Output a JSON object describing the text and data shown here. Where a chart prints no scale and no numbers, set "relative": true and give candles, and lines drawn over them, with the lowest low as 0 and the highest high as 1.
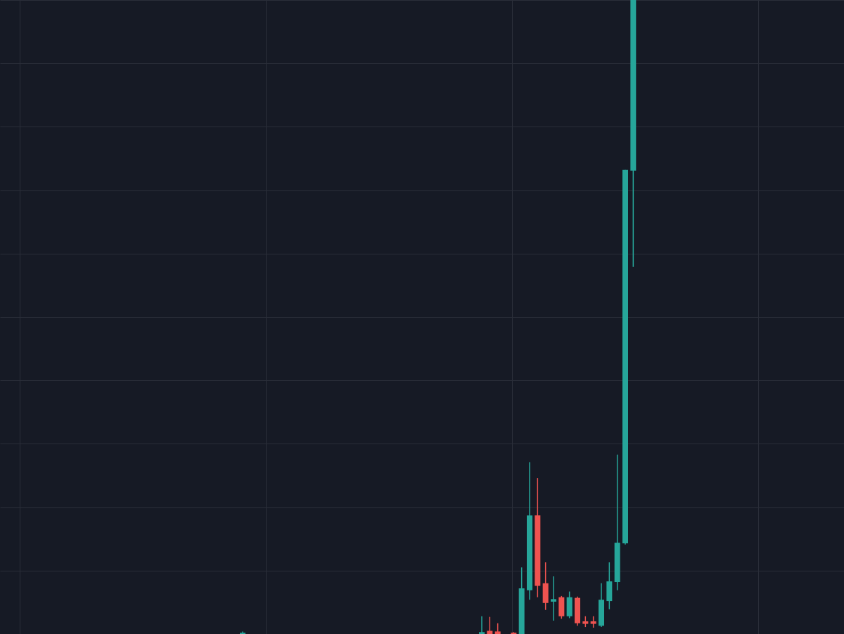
{
  "chart_data": {
    "type": "candlestick",
    "relative": true,
    "grid": true,
    "categories": [
      null,
      null,
      null,
      null,
      null,
      null,
      null,
      null,
      null,
      null,
      null,
      null,
      null,
      null,
      null,
      null,
      null,
      null,
      null,
      null,
      null,
      null,
      null,
      null,
      null,
      null,
      null,
      null,
      null,
      null,
      null,
      null,
      null,
      null,
      null,
      null,
      null,
      null,
      null,
      null,
      null,
      null,
      null,
      null,
      null,
      null,
      null,
      null,
      null,
      null
    ],
    "ohlc": [
      [
        0,
        0.004,
        0,
        0.002
      ],
      null,
      null,
      null,
      null,
      null,
      null,
      null,
      null,
      null,
      null,
      null,
      null,
      null,
      null,
      null,
      null,
      null,
      null,
      null,
      null,
      null,
      null,
      null,
      null,
      null,
      null,
      null,
      null,
      null,
      [
        0,
        0.028,
        0,
        0.003
      ],
      [
        0.005,
        0.027,
        0,
        0
      ],
      [
        0.004,
        0.017,
        0,
        0
      ],
      null,
      [
        0.002,
        0.003,
        0,
        0
      ],
      [
        0,
        0.105,
        0,
        0.072
      ],
      [
        0.069,
        0.271,
        0.054,
        0.187
      ],
      [
        0.187,
        0.246,
        0.058,
        0.076
      ],
      [
        0.08,
        0.113,
        0.038,
        0.049
      ],
      [
        0.051,
        0.091,
        0.021,
        0.055
      ],
      [
        0.058,
        0.06,
        0.024,
        0.028
      ],
      [
        0.028,
        0.067,
        0.025,
        0.058
      ],
      [
        0.057,
        0.059,
        0.013,
        0.017
      ],
      [
        0.02,
        0.028,
        0.011,
        0.016
      ],
      [
        0.02,
        0.028,
        0.01,
        0.016
      ],
      [
        0.013,
        0.08,
        0.011,
        0.054
      ],
      [
        0.052,
        0.113,
        0.039,
        0.083
      ],
      [
        0.082,
        0.283,
        0.069,
        0.144
      ],
      [
        0.143,
        0.732,
        0.141,
        0.732
      ],
      [
        0.731,
        1,
        0.579,
        1
      ]
    ],
    "colors": [
      "#26a69a",
      null,
      null,
      null,
      null,
      null,
      null,
      null,
      null,
      null,
      null,
      null,
      null,
      null,
      null,
      null,
      null,
      null,
      null,
      null,
      null,
      null,
      null,
      null,
      null,
      null,
      null,
      null,
      null,
      null,
      "#26a69a",
      "#ef5350",
      "#ef5350",
      null,
      "#ef5350",
      "#26a69a",
      "#26a69a",
      "#ef5350",
      "#ef5350",
      "#26a69a",
      "#ef5350",
      "#26a69a",
      "#ef5350",
      "#ef5350",
      "#ef5350",
      "#26a69a",
      "#26a69a",
      "#26a69a",
      "#26a69a",
      "#26a69a"
    ]
  }
}
